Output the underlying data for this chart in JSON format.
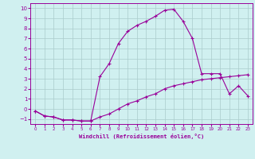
{
  "xlabel": "Windchill (Refroidissement éolien,°C)",
  "background_color": "#d0f0f0",
  "line_color": "#990099",
  "grid_color": "#aacccc",
  "xlim": [
    -0.5,
    23.5
  ],
  "ylim": [
    -1.5,
    10.5
  ],
  "yticks": [
    -1,
    0,
    1,
    2,
    3,
    4,
    5,
    6,
    7,
    8,
    9,
    10
  ],
  "xticks": [
    0,
    1,
    2,
    3,
    4,
    5,
    6,
    7,
    8,
    9,
    10,
    11,
    12,
    13,
    14,
    15,
    16,
    17,
    18,
    19,
    20,
    21,
    22,
    23
  ],
  "series1_x": [
    0,
    1,
    2,
    3,
    4,
    5,
    6,
    7,
    8,
    9,
    10,
    11,
    12,
    13,
    14,
    15,
    16,
    17,
    18,
    19,
    20,
    21,
    22,
    23
  ],
  "series1_y": [
    -0.2,
    -0.7,
    -0.8,
    -1.1,
    -1.1,
    -1.2,
    -1.2,
    -0.8,
    -0.5,
    0.0,
    0.5,
    0.8,
    1.2,
    1.5,
    2.0,
    2.3,
    2.5,
    2.7,
    2.9,
    3.0,
    3.1,
    3.2,
    3.3,
    3.4
  ],
  "series2_x": [
    0,
    1,
    2,
    3,
    4,
    5,
    6,
    7,
    8,
    9,
    10,
    11,
    12,
    13,
    14,
    15,
    16,
    17,
    18,
    19,
    20,
    21,
    22,
    23
  ],
  "series2_y": [
    -0.2,
    -0.7,
    -0.8,
    -1.1,
    -1.1,
    -1.2,
    -1.2,
    3.2,
    4.5,
    6.5,
    7.7,
    8.3,
    8.7,
    9.2,
    9.8,
    9.9,
    8.7,
    7.0,
    3.5,
    3.5,
    3.5,
    1.5,
    2.3,
    1.3
  ]
}
